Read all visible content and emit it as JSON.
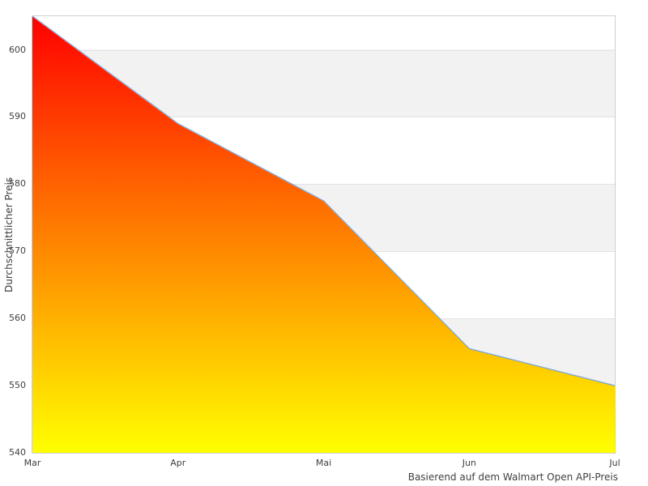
{
  "chart_data": {
    "type": "area",
    "title": "",
    "xlabel": "",
    "ylabel": "Durchschnittlicher Preis",
    "caption": "Basierend auf dem Walmart Open API-Preis",
    "categories": [
      "Mar",
      "Apr",
      "Mai",
      "Jun",
      "Jul"
    ],
    "values": [
      605,
      589,
      577.5,
      555.5,
      550
    ],
    "ylim": [
      540,
      605
    ],
    "yticks": [
      540,
      550,
      560,
      570,
      580,
      590,
      600
    ],
    "legend": "none",
    "grid": "alternating horizontal bands, gray between 590-600, 570-580, 550-560",
    "colors": {
      "gradient_top": "#ff0000",
      "gradient_bottom": "#ffff00",
      "line": "#82abd6",
      "band_gray": "#f2f2f2",
      "gridline": "#e3e3e3",
      "plot_border": "#cfcfcf",
      "text": "#3f3f3f",
      "background": "#ffffff"
    }
  }
}
